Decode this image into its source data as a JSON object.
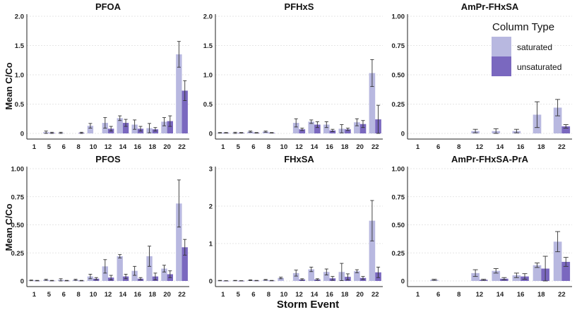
{
  "figure": {
    "ylabel": "Mean C/Co",
    "xlabel": "Storm Event",
    "legend": {
      "title": "Column Type",
      "items": [
        {
          "label": "saturated",
          "color": "#b8b8e0"
        },
        {
          "label": "unsaturated",
          "color": "#7a68bf"
        }
      ]
    }
  },
  "chart_data": [
    {
      "type": "bar",
      "title": "PFOA",
      "xlabel": "",
      "ylabel": "Mean C/Co",
      "categories": [
        "1",
        "5",
        "6",
        "8",
        "10",
        "12",
        "14",
        "16",
        "18",
        "20",
        "22"
      ],
      "ylim": [
        0,
        2.0
      ],
      "yticks": [
        "0",
        "0.5",
        "1.0",
        "1.5",
        "2.0"
      ],
      "ytick_values": [
        0,
        0.5,
        1.0,
        1.5,
        2.0
      ],
      "series": [
        {
          "name": "saturated",
          "values": [
            null,
            0.02,
            0.01,
            null,
            0.13,
            0.18,
            0.26,
            0.15,
            0.09,
            0.2,
            1.35
          ],
          "errors": [
            null,
            0.02,
            0.01,
            null,
            0.04,
            0.09,
            0.04,
            0.08,
            0.08,
            0.07,
            0.22
          ]
        },
        {
          "name": "unsaturated",
          "values": [
            null,
            0.01,
            null,
            0.01,
            null,
            0.08,
            0.18,
            0.08,
            0.07,
            0.21,
            0.73
          ],
          "errors": [
            null,
            0.01,
            null,
            0.01,
            null,
            0.04,
            0.06,
            0.04,
            0.03,
            0.09,
            0.17
          ]
        }
      ]
    },
    {
      "type": "bar",
      "title": "PFHxS",
      "xlabel": "",
      "ylabel": "",
      "categories": [
        "1",
        "5",
        "6",
        "8",
        "10",
        "12",
        "14",
        "16",
        "18",
        "20",
        "22"
      ],
      "ylim": [
        0,
        2.0
      ],
      "yticks": [
        "0",
        "0.5",
        "1.0",
        "1.5",
        "2.0"
      ],
      "ytick_values": [
        0,
        0.5,
        1.0,
        1.5,
        2.0
      ],
      "series": [
        {
          "name": "saturated",
          "values": [
            0.01,
            0.01,
            0.03,
            0.03,
            null,
            0.18,
            0.2,
            0.15,
            0.08,
            0.19,
            1.03
          ],
          "errors": [
            0.005,
            0.01,
            0.01,
            0.01,
            null,
            0.07,
            0.03,
            0.05,
            0.07,
            0.06,
            0.23
          ]
        },
        {
          "name": "unsaturated",
          "values": [
            0.01,
            0.01,
            0.01,
            0.01,
            null,
            0.07,
            0.15,
            0.05,
            0.07,
            0.16,
            0.24
          ],
          "errors": [
            0.005,
            0.005,
            0.005,
            0.005,
            null,
            0.02,
            0.05,
            0.02,
            0.02,
            0.06,
            0.24
          ]
        }
      ]
    },
    {
      "type": "bar",
      "title": "AmPr-FHxSA",
      "xlabel": "",
      "ylabel": "",
      "categories": [
        "1",
        "6",
        "8",
        "12",
        "14",
        "16",
        "18",
        "22"
      ],
      "ylim": [
        0,
        1.0
      ],
      "yticks": [
        "0",
        "0.25",
        "0.50",
        "0.75",
        "1.00"
      ],
      "ytick_values": [
        0,
        0.25,
        0.5,
        0.75,
        1.0
      ],
      "series": [
        {
          "name": "saturated",
          "values": [
            null,
            null,
            null,
            0.02,
            0.02,
            0.02,
            0.16,
            0.22
          ],
          "errors": [
            null,
            null,
            null,
            0.015,
            0.02,
            0.015,
            0.11,
            0.07
          ]
        },
        {
          "name": "unsaturated",
          "values": [
            null,
            null,
            null,
            null,
            null,
            null,
            null,
            0.06
          ],
          "errors": [
            null,
            null,
            null,
            null,
            null,
            null,
            null,
            0.015
          ]
        }
      ]
    },
    {
      "type": "bar",
      "title": "PFOS",
      "xlabel": "Storm Event",
      "ylabel": "Mean C/Co",
      "categories": [
        "1",
        "5",
        "6",
        "8",
        "10",
        "12",
        "14",
        "16",
        "18",
        "20",
        "22"
      ],
      "ylim": [
        0,
        1.0
      ],
      "yticks": [
        "0",
        "0.25",
        "0.50",
        "0.75",
        "1.00"
      ],
      "ytick_values": [
        0,
        0.25,
        0.5,
        0.75,
        1.0
      ],
      "series": [
        {
          "name": "saturated",
          "values": [
            0.005,
            0.01,
            0.01,
            0.01,
            0.04,
            0.13,
            0.22,
            0.09,
            0.22,
            0.11,
            0.69
          ],
          "errors": [
            0.003,
            0.005,
            0.01,
            0.005,
            0.02,
            0.06,
            0.015,
            0.04,
            0.09,
            0.03,
            0.21
          ]
        },
        {
          "name": "unsaturated",
          "values": [
            0.003,
            0.003,
            0.003,
            0.003,
            0.02,
            0.03,
            0.04,
            0.02,
            0.04,
            0.06,
            0.3
          ],
          "errors": [
            0.002,
            0.002,
            0.002,
            0.002,
            0.01,
            0.02,
            0.02,
            0.01,
            0.03,
            0.03,
            0.07
          ]
        }
      ]
    },
    {
      "type": "bar",
      "title": "FHxSA",
      "xlabel": "Storm Event",
      "ylabel": "",
      "categories": [
        "1",
        "5",
        "6",
        "8",
        "10",
        "12",
        "14",
        "16",
        "18",
        "20",
        "22"
      ],
      "ylim": [
        0,
        3
      ],
      "yticks": [
        "0",
        "1",
        "2",
        "3"
      ],
      "ytick_values": [
        0,
        1,
        2,
        3
      ],
      "series": [
        {
          "name": "saturated",
          "values": [
            0.01,
            0.01,
            0.02,
            0.03,
            0.08,
            0.21,
            0.31,
            0.24,
            0.24,
            0.26,
            1.61
          ],
          "errors": [
            0.005,
            0.005,
            0.01,
            0.01,
            0.02,
            0.08,
            0.06,
            0.08,
            0.23,
            0.04,
            0.54
          ]
        },
        {
          "name": "unsaturated",
          "values": [
            0.005,
            0.005,
            0.01,
            0.01,
            null,
            0.04,
            0.04,
            0.07,
            0.11,
            0.08,
            0.23
          ],
          "errors": [
            0.003,
            0.003,
            0.005,
            0.005,
            null,
            0.02,
            0.02,
            0.05,
            0.08,
            0.04,
            0.14
          ]
        }
      ]
    },
    {
      "type": "bar",
      "title": "AmPr-FHxSA-PrA",
      "xlabel": "Storm Event",
      "ylabel": "",
      "categories": [
        "1",
        "6",
        "8",
        "12",
        "14",
        "16",
        "18",
        "22"
      ],
      "ylim": [
        0,
        1.0
      ],
      "yticks": [
        "0",
        "0.25",
        "0.50",
        "0.75",
        "1.00"
      ],
      "ytick_values": [
        0,
        0.25,
        0.5,
        0.75,
        1.0
      ],
      "series": [
        {
          "name": "saturated",
          "values": [
            null,
            0.01,
            null,
            0.07,
            0.09,
            0.05,
            0.14,
            0.35
          ],
          "errors": [
            null,
            0.005,
            null,
            0.03,
            0.02,
            0.02,
            0.02,
            0.09
          ]
        },
        {
          "name": "unsaturated",
          "values": [
            null,
            null,
            null,
            0.01,
            0.02,
            0.04,
            0.11,
            0.17
          ],
          "errors": [
            null,
            null,
            null,
            0.005,
            0.01,
            0.025,
            0.11,
            0.04
          ]
        }
      ]
    }
  ]
}
